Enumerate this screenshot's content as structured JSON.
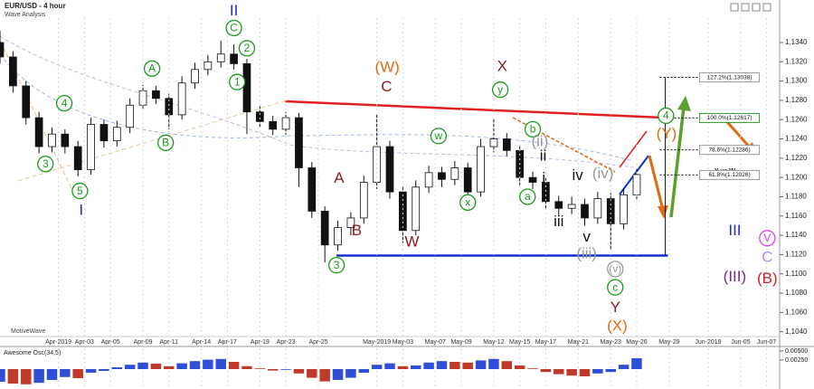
{
  "chart_data": [
    {
      "type": "candlestick",
      "title": "EUR/USD - 4 hour",
      "subtitle": "Wave Analysis",
      "watermark": "MotiveWave",
      "note": "Y vs W",
      "x": [
        0,
        2,
        4,
        6,
        8,
        10,
        12,
        14,
        16,
        18,
        20,
        22,
        24,
        26,
        28,
        30,
        32,
        34,
        36,
        38,
        40,
        42,
        44,
        46,
        48,
        50,
        52,
        54,
        56,
        58,
        60,
        62,
        64,
        66,
        68,
        70,
        72,
        74,
        76,
        78,
        80,
        82,
        84,
        86,
        88,
        90,
        92,
        94,
        96,
        98
      ],
      "open": [
        1.134,
        1.1325,
        1.1295,
        1.1262,
        1.1232,
        1.1245,
        1.1232,
        1.1208,
        1.1255,
        1.1238,
        1.1252,
        1.1275,
        1.129,
        1.1282,
        1.1265,
        1.1298,
        1.1312,
        1.132,
        1.1328,
        1.1318,
        1.1268,
        1.1258,
        1.125,
        1.1262,
        1.121,
        1.1165,
        1.113,
        1.1148,
        1.1158,
        1.1195,
        1.1232,
        1.1185,
        1.1145,
        1.119,
        1.1205,
        1.1198,
        1.121,
        1.1185,
        1.1232,
        1.124,
        1.1228,
        1.12,
        1.1195,
        1.1175,
        1.1168,
        1.1172,
        1.1158,
        1.1178,
        1.1152,
        1.1182
      ],
      "high": [
        1.1352,
        1.1331,
        1.13,
        1.1268,
        1.1252,
        1.125,
        1.1238,
        1.1262,
        1.126,
        1.1259,
        1.1282,
        1.1296,
        1.1295,
        1.1287,
        1.1305,
        1.1319,
        1.1327,
        1.1342,
        1.1338,
        1.1323,
        1.1274,
        1.1264,
        1.1268,
        1.1267,
        1.1216,
        1.117,
        1.1155,
        1.1164,
        1.1202,
        1.1265,
        1.1238,
        1.119,
        1.1197,
        1.1212,
        1.1211,
        1.1217,
        1.1215,
        1.124,
        1.1262,
        1.1246,
        1.1234,
        1.1206,
        1.1201,
        1.1181,
        1.118,
        1.1178,
        1.1185,
        1.1184,
        1.1189,
        1.121
      ],
      "low": [
        1.1318,
        1.1288,
        1.1255,
        1.1225,
        1.1226,
        1.1225,
        1.1201,
        1.1203,
        1.1231,
        1.1232,
        1.1246,
        1.127,
        1.1276,
        1.125,
        1.126,
        1.1292,
        1.1306,
        1.1314,
        1.1312,
        1.1245,
        1.1252,
        1.1244,
        1.1244,
        1.119,
        1.1158,
        1.1112,
        1.1124,
        1.114,
        1.1152,
        1.1188,
        1.1178,
        1.1132,
        1.114,
        1.1184,
        1.119,
        1.1192,
        1.117,
        1.118,
        1.1226,
        1.1222,
        1.1192,
        1.1188,
        1.1168,
        1.116,
        1.1162,
        1.115,
        1.1152,
        1.1125,
        1.1146,
        1.1176
      ],
      "close": [
        1.1325,
        1.1295,
        1.1262,
        1.1232,
        1.1245,
        1.1232,
        1.1208,
        1.1255,
        1.1238,
        1.1252,
        1.1275,
        1.129,
        1.1282,
        1.1265,
        1.1298,
        1.1312,
        1.132,
        1.1328,
        1.1318,
        1.1268,
        1.1258,
        1.125,
        1.1262,
        1.121,
        1.1165,
        1.113,
        1.1148,
        1.1158,
        1.1195,
        1.1232,
        1.1185,
        1.1145,
        1.119,
        1.1205,
        1.1198,
        1.121,
        1.1185,
        1.1232,
        1.124,
        1.1228,
        1.12,
        1.1195,
        1.1175,
        1.1168,
        1.1172,
        1.1158,
        1.1178,
        1.1152,
        1.1182,
        1.1203
      ],
      "up_color": "#ffffff",
      "down_color": "#111111",
      "xlim": [
        0,
        120
      ],
      "ylim": [
        1.1035,
        1.137
      ],
      "xticks": [
        {
          "value": 9,
          "label": "Apr-2019"
        },
        {
          "value": 13,
          "label": "Apr-03"
        },
        {
          "value": 17,
          "label": "Apr-05"
        },
        {
          "value": 22,
          "label": "Apr-09"
        },
        {
          "value": 26,
          "label": "Apr-11"
        },
        {
          "value": 31,
          "label": "Apr-14"
        },
        {
          "value": 35,
          "label": "Apr-17"
        },
        {
          "value": 40,
          "label": "Apr-19"
        },
        {
          "value": 44,
          "label": "Apr-23"
        },
        {
          "value": 49,
          "label": "Apr-25"
        },
        {
          "value": 58,
          "label": "May-2019"
        },
        {
          "value": 62,
          "label": "May-03"
        },
        {
          "value": 67,
          "label": "May-07"
        },
        {
          "value": 71,
          "label": "May-09"
        },
        {
          "value": 76,
          "label": "May-12"
        },
        {
          "value": 80,
          "label": "May-15"
        },
        {
          "value": 84,
          "label": "May-17"
        },
        {
          "value": 89,
          "label": "May-21"
        },
        {
          "value": 94,
          "label": "May-23"
        },
        {
          "value": 98,
          "label": "May-26"
        },
        {
          "value": 103,
          "label": "May-29"
        },
        {
          "value": 109,
          "label": "Jun-2019"
        },
        {
          "value": 114,
          "label": "Jun-05"
        },
        {
          "value": 118,
          "label": "Jun-07"
        }
      ],
      "yticks": [
        {
          "value": 1.104,
          "label": "1.1040"
        },
        {
          "value": 1.106,
          "label": "1.1060"
        },
        {
          "value": 1.108,
          "label": "1.1080"
        },
        {
          "value": 1.11,
          "label": "1.1100"
        },
        {
          "value": 1.112,
          "label": "1.1120"
        },
        {
          "value": 1.114,
          "label": "1.1140"
        },
        {
          "value": 1.116,
          "label": "1.1160"
        },
        {
          "value": 1.118,
          "label": "1.1180"
        },
        {
          "value": 1.12,
          "label": "1.1200"
        },
        {
          "value": 1.122,
          "label": "1.1220"
        },
        {
          "value": 1.124,
          "label": "1.1240"
        },
        {
          "value": 1.126,
          "label": "1.1260"
        },
        {
          "value": 1.128,
          "label": "1.1280"
        },
        {
          "value": 1.13,
          "label": "1.1300"
        },
        {
          "value": 1.132,
          "label": "1.1320"
        },
        {
          "value": 1.134,
          "label": "1.1340"
        }
      ],
      "grid": true,
      "lines": [
        {
          "x": [
            43.9,
            102.4
          ],
          "y": [
            1.1279,
            1.1262
          ],
          "color": "#e02020"
        },
        {
          "x": [
            51.8,
            102.8
          ],
          "y": [
            1.1119,
            1.1119
          ],
          "color": "#1030d0"
        }
      ],
      "fib": [
        {
          "value": 1.13038,
          "label": "127.2%(1.13038)"
        },
        {
          "value": 1.12617,
          "label": "100.0%(1.12617)"
        },
        {
          "value": 1.12286,
          "label": "78.6%(1.12286)"
        },
        {
          "value": 1.12026,
          "label": "61.8%(1.12026)"
        }
      ],
      "annotations": [
        {
          "text": "II",
          "x": 36,
          "y": 1.1373,
          "color": "#1f2fbf",
          "circled": false
        },
        {
          "text": "C",
          "x": 36,
          "y": 1.1355,
          "color": "#1a9a1a",
          "circled": true
        },
        {
          "text": "2",
          "x": 38,
          "y": 1.1334,
          "color": "#1a9a1a",
          "circled": true
        },
        {
          "text": "1",
          "x": 36.5,
          "y": 1.1299,
          "color": "#1a9a1a",
          "circled": true
        },
        {
          "text": "A",
          "x": 23.4,
          "y": 1.1313,
          "color": "#1a9a1a",
          "circled": true
        },
        {
          "text": "B",
          "x": 25.5,
          "y": 1.1236,
          "color": "#1a9a1a",
          "circled": true
        },
        {
          "text": "4",
          "x": 9.9,
          "y": 1.1277,
          "color": "#1a9a1a",
          "circled": true
        },
        {
          "text": "3",
          "x": 7,
          "y": 1.1214,
          "color": "#1a9a1a",
          "circled": true
        },
        {
          "text": "5",
          "x": 12.3,
          "y": 1.1186,
          "color": "#1a9a1a",
          "circled": true
        },
        {
          "text": "I",
          "x": 12.5,
          "y": 1.1166,
          "color": "#1f2fbf",
          "circled": false
        },
        {
          "text": "(W)",
          "x": 59.6,
          "y": 1.1314,
          "color": "#e06a10",
          "circled": false
        },
        {
          "text": "C",
          "x": 59.5,
          "y": 1.1294,
          "color": "#8b1a1a",
          "circled": false
        },
        {
          "text": "A",
          "x": 52.2,
          "y": 1.1199,
          "color": "#8b1a1a",
          "circled": false
        },
        {
          "text": "B",
          "x": 54.9,
          "y": 1.1145,
          "color": "#8b1a1a",
          "circled": false
        },
        {
          "text": "W",
          "x": 63.4,
          "y": 1.1133,
          "color": "#8b1a1a",
          "circled": false
        },
        {
          "text": "3",
          "x": 51.8,
          "y": 1.1109,
          "color": "#1a9a1a",
          "circled": true
        },
        {
          "text": "X",
          "x": 77.3,
          "y": 1.1315,
          "color": "#8b1a1a",
          "circled": false
        },
        {
          "text": "y",
          "x": 77,
          "y": 1.1291,
          "color": "#1a9a1a",
          "circled": true
        },
        {
          "text": "w",
          "x": 67.5,
          "y": 1.1243,
          "color": "#1a9a1a",
          "circled": true
        },
        {
          "text": "x",
          "x": 72,
          "y": 1.1174,
          "color": "#1a9a1a",
          "circled": true
        },
        {
          "text": "b",
          "x": 82,
          "y": 1.125,
          "color": "#1a9a1a",
          "circled": true
        },
        {
          "text": "a",
          "x": 81.2,
          "y": 1.118,
          "color": "#1a9a1a",
          "circled": true
        },
        {
          "text": "(ii)",
          "x": 83.1,
          "y": 1.1237,
          "color": "#999999",
          "circled": false
        },
        {
          "text": "ii",
          "x": 83.6,
          "y": 1.1222,
          "color": "#111111",
          "circled": false
        },
        {
          "text": "i",
          "x": 83.7,
          "y": 1.1199,
          "color": "#111111",
          "circled": false
        },
        {
          "text": "iii",
          "x": 86,
          "y": 1.1154,
          "color": "#111111",
          "circled": false
        },
        {
          "text": "iv",
          "x": 88.9,
          "y": 1.1202,
          "color": "#111111",
          "circled": false
        },
        {
          "text": "(iv)",
          "x": 92.8,
          "y": 1.1204,
          "color": "#999999",
          "circled": false
        },
        {
          "text": "v",
          "x": 90.3,
          "y": 1.1138,
          "color": "#111111",
          "circled": false
        },
        {
          "text": "(iii)",
          "x": 90.3,
          "y": 1.1121,
          "color": "#999999",
          "circled": false
        },
        {
          "text": "(v)",
          "x": 94.7,
          "y": 1.1105,
          "color": "#999999",
          "circled": true
        },
        {
          "text": "c",
          "x": 94.7,
          "y": 1.1086,
          "color": "#1a9a1a",
          "circled": true
        },
        {
          "text": "Y",
          "x": 94.7,
          "y": 1.1065,
          "color": "#8b1a1a",
          "circled": false
        },
        {
          "text": "(X)",
          "x": 95,
          "y": 1.1046,
          "color": "#e06a10",
          "circled": false
        },
        {
          "text": "4",
          "x": 102.5,
          "y": 1.1264,
          "color": "#1a9a1a",
          "circled": true
        },
        {
          "text": "(Y)",
          "x": 102.6,
          "y": 1.1245,
          "color": "#e06a10",
          "circled": false
        },
        {
          "text": "III",
          "x": 113.1,
          "y": 1.1145,
          "color": "#1f2fbf",
          "circled": false
        },
        {
          "text": "V",
          "x": 118.1,
          "y": 1.1137,
          "color": "#e040e0",
          "circled": true
        },
        {
          "text": "C",
          "x": 118.1,
          "y": 1.1117,
          "color": "#b58be0",
          "circled": false
        },
        {
          "text": "(III)",
          "x": 113.1,
          "y": 1.1097,
          "color": "#7b2a8b",
          "circled": false
        },
        {
          "text": "(B)",
          "x": 118.1,
          "y": 1.1095,
          "color": "#d02020",
          "circled": false
        }
      ]
    },
    {
      "type": "bar",
      "title": "Awesome Osc(34,5)",
      "x": [
        0,
        2,
        4,
        6,
        8,
        10,
        12,
        14,
        16,
        18,
        20,
        22,
        24,
        26,
        28,
        30,
        32,
        34,
        36,
        38,
        40,
        42,
        44,
        46,
        48,
        50,
        52,
        54,
        56,
        58,
        60,
        62,
        64,
        66,
        68,
        70,
        72,
        74,
        76,
        78,
        80,
        82,
        84,
        86,
        88,
        90,
        92,
        94,
        96,
        98
      ],
      "values": [
        -0.0035,
        -0.004,
        -0.0042,
        -0.0038,
        -0.003,
        -0.0022,
        -0.0025,
        -0.001,
        -0.0005,
        0.0005,
        0.0012,
        0.0018,
        0.0015,
        0.0008,
        0.0016,
        0.0022,
        0.0026,
        0.0028,
        0.002,
        0.0008,
        0.0002,
        -0.0004,
        -0.0002,
        -0.0012,
        -0.0024,
        -0.0034,
        -0.003,
        -0.0024,
        -0.001,
        0.0012,
        0.0016,
        0.0008,
        0.001,
        0.0018,
        0.0022,
        0.002,
        0.0018,
        0.0024,
        0.0028,
        0.0022,
        0.001,
        0.0002,
        -0.0008,
        -0.0014,
        -0.0018,
        -0.002,
        -0.0012,
        -0.0008,
        0.0012,
        0.003
      ],
      "up_color": "#2e4fd6",
      "down_color": "#c0392b",
      "xlim": [
        0,
        120
      ],
      "ylim": [
        -0.005,
        0.006
      ],
      "yticks": [
        {
          "value": 0.005,
          "label": "0.00500"
        },
        {
          "value": 0.0025,
          "label": "0.00250"
        }
      ]
    }
  ]
}
